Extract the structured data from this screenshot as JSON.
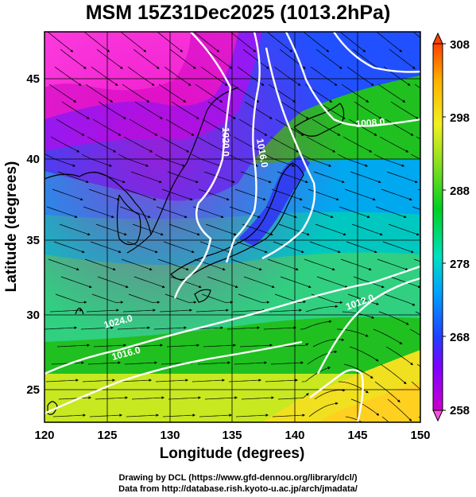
{
  "title": "MSM 15Z31Dec2025 (1013.2hPa)",
  "map": {
    "xlabel": "Longitude (degrees)",
    "ylabel": "Latitude  (degrees)",
    "lon_range": [
      120,
      150
    ],
    "lat_range": [
      22.5,
      48
    ],
    "lon_ticks": [
      "120",
      "125",
      "130",
      "135",
      "140",
      "145",
      "150"
    ],
    "lat_ticks": [
      "25",
      "30",
      "35",
      "40",
      "45"
    ],
    "grid": true,
    "field": "temperature shading with streamlines"
  },
  "contours": {
    "color": "#ffffff",
    "labels": [
      "1020.0",
      "1016.0",
      "1008.0",
      "1012.0",
      "1024.0",
      "1016.0"
    ]
  },
  "colorbar": {
    "min": 258,
    "max": 308,
    "tick_labels": [
      "308",
      "298",
      "288",
      "278",
      "268",
      "258"
    ],
    "colors": [
      "#cc00cc",
      "#7d00ff",
      "#2040ff",
      "#00b0ff",
      "#00e0c0",
      "#00d020",
      "#90e020",
      "#f0f020",
      "#ffb000",
      "#ff4000"
    ]
  },
  "credits": {
    "line1": "Drawing by DCL (https://www.gfd-dennou.org/library/dcl/)",
    "line2": "Data from http://database.rish.kyoto-u.ac.jp/arch/jmadata/"
  }
}
